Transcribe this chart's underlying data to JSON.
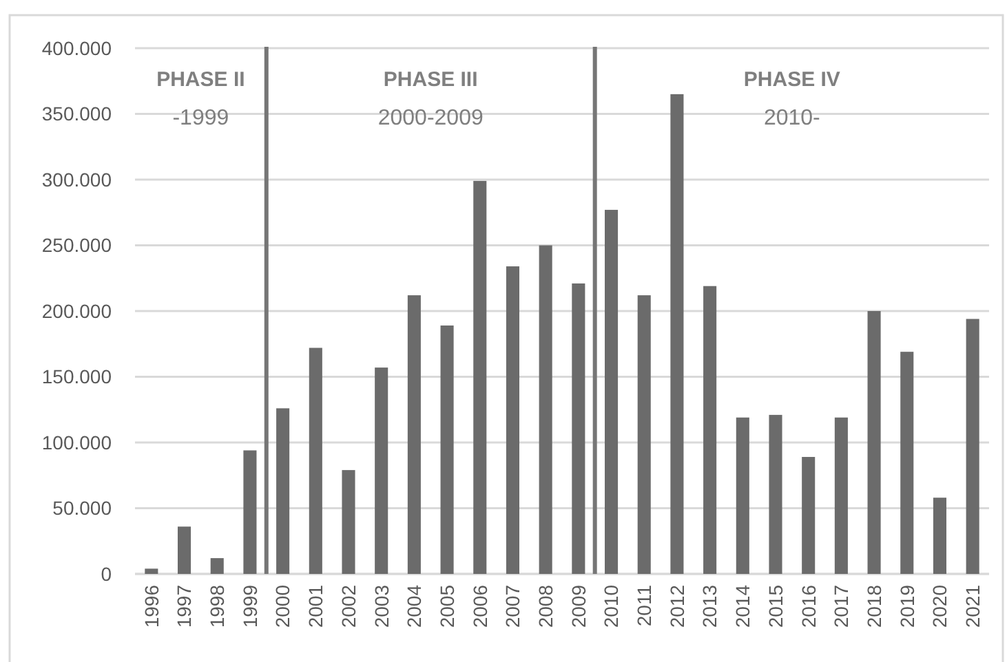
{
  "chart_data": {
    "type": "bar",
    "x": [
      1996,
      1997,
      1998,
      1999,
      2000,
      2001,
      2002,
      2003,
      2004,
      2005,
      2006,
      2007,
      2008,
      2009,
      2010,
      2011,
      2012,
      2013,
      2014,
      2015,
      2016,
      2017,
      2018,
      2019,
      2020,
      2021
    ],
    "values": [
      4000,
      36000,
      12000,
      94000,
      126000,
      172000,
      79000,
      157000,
      212000,
      189000,
      299000,
      234000,
      250000,
      221000,
      277000,
      212000,
      365000,
      219000,
      119000,
      121000,
      89000,
      119000,
      200000,
      169000,
      58000,
      194000
    ],
    "color": "#6b6b6b",
    "xlim": [
      1995.5,
      2021.5
    ],
    "xticks": [
      1996,
      1997,
      1998,
      1999,
      2000,
      2001,
      2002,
      2003,
      2004,
      2005,
      2006,
      2007,
      2008,
      2009,
      2010,
      2011,
      2012,
      2013,
      2014,
      2015,
      2016,
      2017,
      2018,
      2019,
      2020,
      2021
    ],
    "ylim": [
      0,
      400000
    ],
    "yticks": [
      0,
      {
        "value": 50000,
        "label": "50.000"
      },
      {
        "value": 100000,
        "label": "100.000"
      },
      {
        "value": 150000,
        "label": "150.000"
      },
      {
        "value": 200000,
        "label": "200.000"
      },
      {
        "value": 250000,
        "label": "250.000"
      },
      {
        "value": 300000,
        "label": "300.000"
      },
      {
        "value": 350000,
        "label": "350.000"
      },
      {
        "value": 400000,
        "label": "400.000"
      }
    ],
    "grid": "y",
    "ref_lines": [
      {
        "axis": "x",
        "value": 1999.5,
        "color": "#767676"
      },
      {
        "axis": "x",
        "value": 2009.5,
        "color": "#767676"
      }
    ],
    "annotations": [
      "PHASE II",
      "-1999",
      "PHASE III",
      "2000-2009",
      "PHASE IV",
      "2010-"
    ]
  }
}
